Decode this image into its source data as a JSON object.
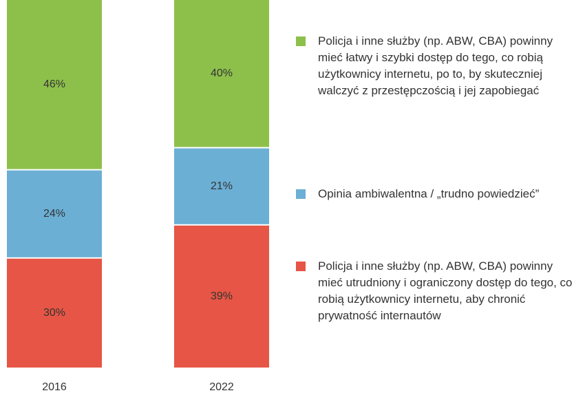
{
  "chart_data": {
    "type": "stacked-bar",
    "categories": [
      "2016",
      "2022"
    ],
    "ylim": [
      0,
      100
    ],
    "series": [
      {
        "name": "Policja i inne służby (np. ABW, CBA) powinny mieć łatwy i szybki dostęp do tego, co robią użytkownicy internetu, po to, by skuteczniej walczyć z przestępczością i jej zapobiegać",
        "color": "#8dc04b",
        "values": [
          46,
          40
        ],
        "value_labels": [
          "46%",
          "40%"
        ]
      },
      {
        "name": "Opinia ambiwalentna / „trudno powiedzieć”",
        "color": "#6bafd5",
        "values": [
          24,
          21
        ],
        "value_labels": [
          "24%",
          "21%"
        ]
      },
      {
        "name": "Policja i inne służby (np. ABW, CBA) powinny mieć utrudniony i ograniczony dostęp do tego, co robią użytkownicy internetu, aby chronić prywatność internautów",
        "color": "#e65545",
        "values": [
          30,
          39
        ],
        "value_labels": [
          "30%",
          "39%"
        ]
      }
    ]
  }
}
